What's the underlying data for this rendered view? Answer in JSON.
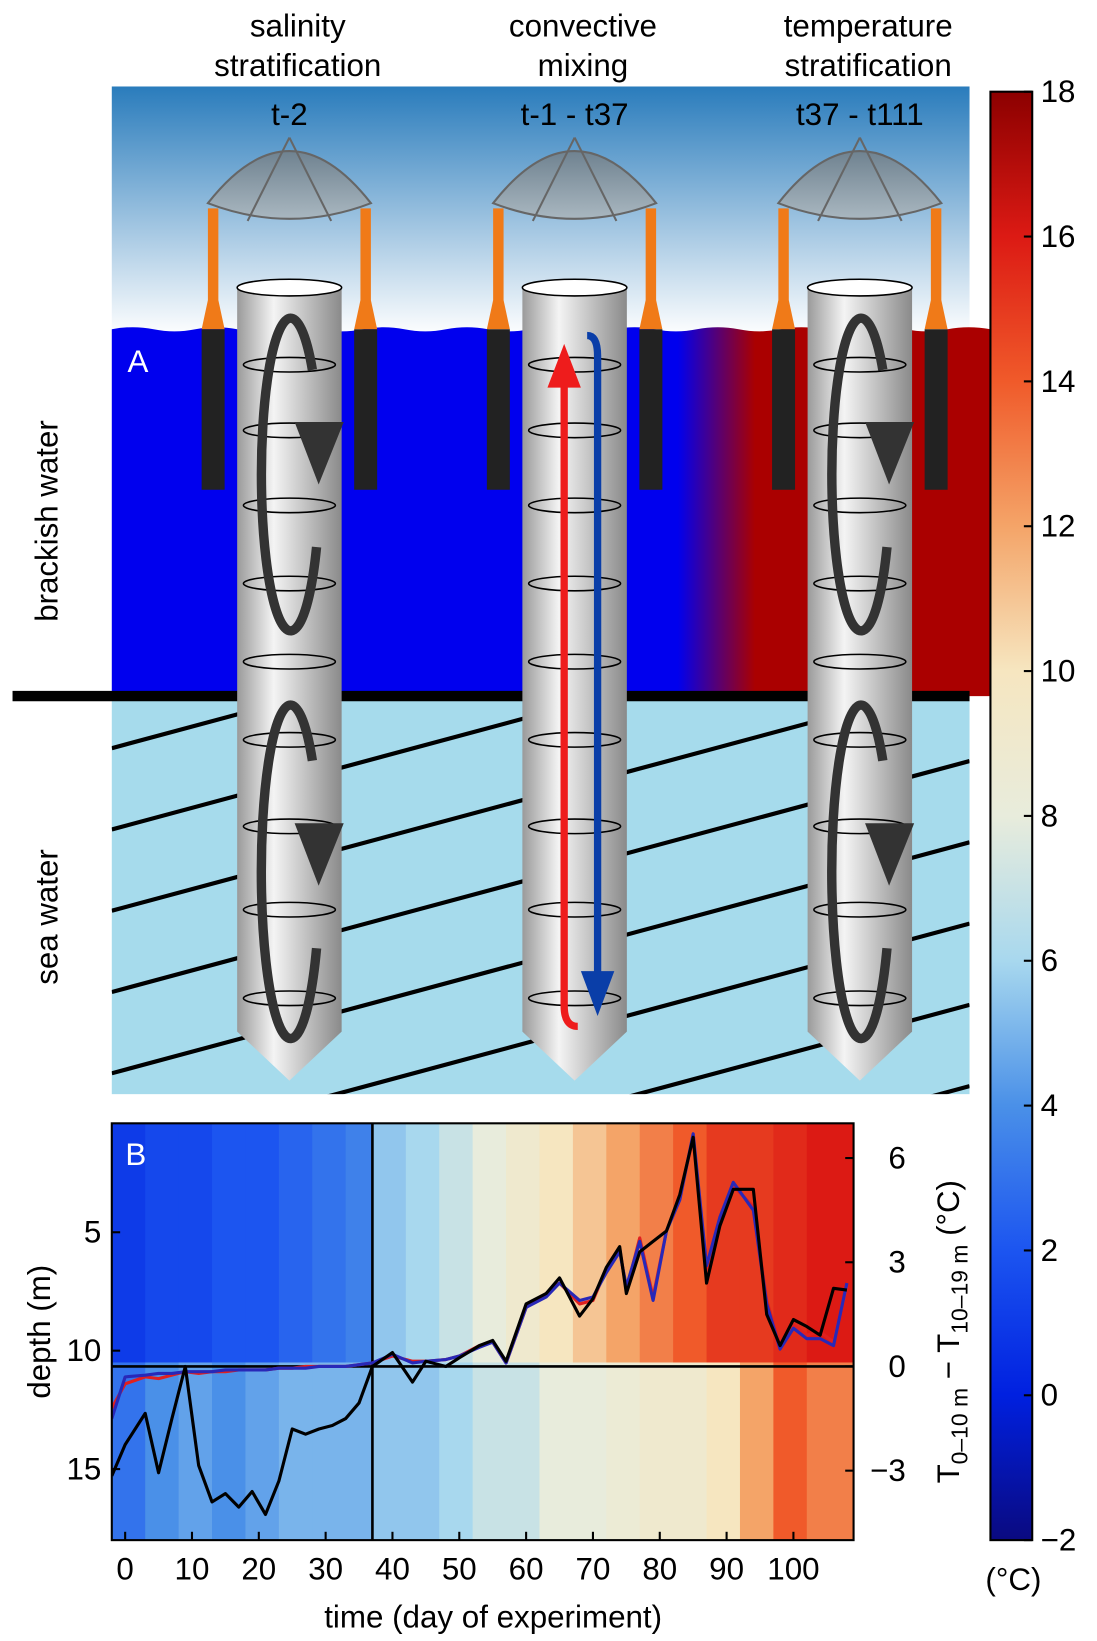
{
  "diagram": {
    "columns": [
      {
        "title": [
          "salinity",
          "stratification"
        ],
        "period": "t-2"
      },
      {
        "title": [
          "convective",
          "mixing"
        ],
        "period": "t-1 - t37"
      },
      {
        "title": [
          "temperature",
          "stratification"
        ],
        "period": "t37 - t111"
      }
    ],
    "panel_label": "A",
    "layers": [
      "brackish water",
      "sea water"
    ]
  },
  "chart_data": {
    "type": "line",
    "panel_label": "B",
    "xlabel": "time (day of experiment)",
    "ylabel": "depth (m)",
    "y2label": {
      "main": "T",
      "sub1": "0–10 m",
      "mid": " − T",
      "sub2": "10–19 m",
      "unit": " (°C)"
    },
    "xlim": [
      -2,
      109
    ],
    "xticks": [
      0,
      10,
      20,
      30,
      40,
      50,
      60,
      70,
      80,
      90,
      100
    ],
    "ylim": [
      18,
      0.4
    ],
    "yticks": [
      5,
      10,
      15
    ],
    "y2lim": [
      -5,
      7
    ],
    "y2ticks": [
      {
        "value": -3,
        "label": "−3"
      },
      0,
      3,
      6
    ],
    "vline": 37,
    "zero_line": 0,
    "x": [
      -2,
      0,
      3,
      5,
      7,
      9,
      11,
      13,
      15,
      17,
      19,
      21,
      23,
      25,
      27,
      29,
      31,
      33,
      35,
      37,
      40,
      43,
      45,
      48,
      50,
      53,
      55,
      57,
      60,
      63,
      65,
      68,
      70,
      72,
      74,
      75,
      77,
      79,
      81,
      83,
      85,
      87,
      89,
      91,
      94,
      96,
      98,
      100,
      102,
      104,
      106,
      108
    ],
    "series": [
      {
        "color": "#e02020",
        "axis": "y2",
        "values": [
          -1.2,
          -0.5,
          -0.3,
          -0.35,
          -0.25,
          -0.15,
          -0.2,
          -0.15,
          -0.15,
          -0.1,
          -0.1,
          -0.1,
          -0.05,
          -0.05,
          0,
          0,
          0,
          0,
          0.05,
          0.1,
          0.3,
          0.15,
          0.15,
          0.2,
          0.3,
          0.6,
          0.7,
          0.1,
          1.7,
          2.1,
          2.4,
          1.8,
          1.9,
          2.8,
          3.4,
          2.2,
          3.7,
          2.0,
          3.9,
          4.9,
          6.6,
          2.8,
          4.2,
          5.2,
          4.6,
          1.9,
          0.6,
          1.2,
          0.9,
          1.0,
          0.7,
          2.3
        ]
      },
      {
        "color": "#2828b8",
        "axis": "y2",
        "values": [
          -1.5,
          -0.3,
          -0.25,
          -0.2,
          -0.2,
          -0.15,
          -0.15,
          -0.15,
          -0.1,
          -0.1,
          -0.1,
          -0.1,
          -0.05,
          -0.05,
          -0.05,
          0,
          0,
          0,
          0.05,
          0.1,
          0.35,
          0.1,
          0.15,
          0.2,
          0.3,
          0.55,
          0.7,
          0.1,
          1.7,
          2.0,
          2.4,
          1.9,
          2.0,
          2.7,
          3.3,
          2.3,
          3.6,
          1.9,
          3.9,
          4.8,
          6.7,
          2.9,
          4.3,
          5.3,
          4.5,
          1.8,
          0.5,
          1.1,
          0.8,
          0.8,
          0.6,
          2.4
        ]
      },
      {
        "color": "#000000",
        "axis": "y2",
        "values": [
          -3.15,
          -2.25,
          -1.35,
          -3.06,
          -1.5,
          0,
          -2.85,
          -3.9,
          -3.66,
          -4.05,
          -3.6,
          -4.26,
          -3.3,
          -1.8,
          -1.95,
          -1.8,
          -1.7,
          -1.5,
          -1.05,
          0,
          0.4,
          -0.45,
          0.15,
          0,
          0.25,
          0.6,
          0.75,
          0.15,
          1.8,
          2.1,
          2.55,
          1.45,
          1.95,
          2.85,
          3.45,
          2.1,
          3.3,
          3.6,
          3.9,
          4.95,
          6.6,
          2.4,
          4.05,
          5.1,
          5.1,
          1.5,
          0.6,
          1.35,
          1.15,
          0.9,
          2.25,
          2.2
        ]
      }
    ],
    "field": {
      "x_edges": [
        -2,
        3,
        8,
        13,
        18,
        23,
        28,
        33,
        37,
        42,
        47,
        52,
        57,
        62,
        67,
        72,
        77,
        82,
        87,
        92,
        97,
        102,
        109
      ],
      "depth_edges": [
        0.4,
        10.5,
        18
      ],
      "temps": [
        [
          1,
          1.5,
          1.5,
          2,
          2,
          2.5,
          3,
          3.5,
          5.5,
          6,
          7,
          8,
          9,
          10,
          11,
          12,
          13,
          14,
          15,
          15,
          15.5,
          16
        ],
        [
          3,
          4,
          4.5,
          4,
          4.5,
          5,
          5,
          5,
          5.5,
          5.5,
          6,
          7,
          7,
          8,
          8,
          8.5,
          9,
          9,
          10,
          12,
          14,
          13
        ]
      ]
    },
    "colorbar": {
      "label": "(°C)",
      "lim": [
        -2,
        18
      ],
      "ticks": [
        {
          "value": -2,
          "label": "−2"
        },
        0,
        2,
        4,
        6,
        8,
        10,
        12,
        14,
        16,
        18
      ],
      "colors": [
        "#0a0a80",
        "#0020e0",
        "#1c55f0",
        "#4a90e8",
        "#a8d8ee",
        "#e8ecdc",
        "#f6e6c0",
        "#f4a468",
        "#f05a2a",
        "#dc1a14",
        "#8c0000"
      ]
    }
  }
}
